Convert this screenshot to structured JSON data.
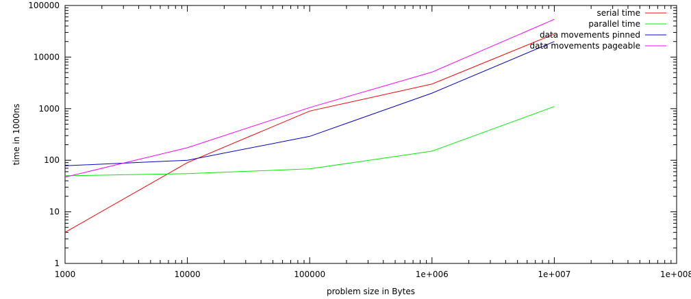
{
  "chart_data": {
    "type": "line",
    "title": "",
    "xlabel": "problem size in Bytes",
    "ylabel": "time in 1000ns",
    "xscale": "log",
    "yscale": "log",
    "xlim": [
      1000,
      100000000
    ],
    "ylim": [
      1,
      100000
    ],
    "x_ticks": [
      1000,
      10000,
      100000,
      1000000,
      10000000,
      100000000
    ],
    "x_tick_labels": [
      "1000",
      "10000",
      "100000",
      "1e+006",
      "1e+007",
      "1e+008"
    ],
    "y_ticks": [
      1,
      10,
      100,
      1000,
      10000,
      100000
    ],
    "y_tick_labels": [
      "1",
      "10",
      "100",
      "1000",
      "10000",
      "100000"
    ],
    "grid": false,
    "legend_position": "top-right",
    "x": [
      1000,
      10000,
      100000,
      1000000,
      10000000
    ],
    "series": [
      {
        "name": "serial time",
        "color": "#ff0000",
        "values": [
          4,
          90,
          900,
          3000,
          28000
        ]
      },
      {
        "name": "parallel time",
        "color": "#00ee00",
        "values": [
          50,
          55,
          68,
          150,
          1100
        ]
      },
      {
        "name": "data movements pinned",
        "color": "#0000cc",
        "values": [
          78,
          100,
          290,
          2000,
          20000
        ]
      },
      {
        "name": "data movements pageable",
        "color": "#ff00ff",
        "values": [
          47,
          175,
          1050,
          5100,
          54000
        ]
      }
    ]
  }
}
